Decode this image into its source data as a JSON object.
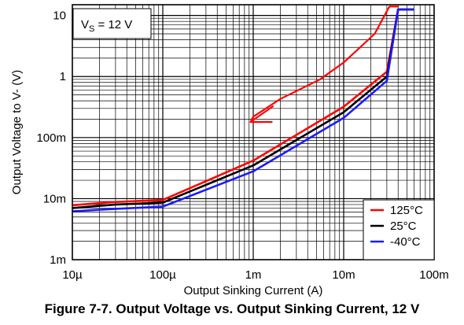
{
  "caption": "Figure 7-7. Output Voltage vs. Output Sinking Current, 12 V",
  "chart_data": {
    "type": "line",
    "xscale": "log",
    "yscale": "log",
    "xlabel": "Output Sinking Current (A)",
    "ylabel": "Output Voltage to V- (V)",
    "xlim": [
      1e-05,
      0.1
    ],
    "ylim": [
      0.001,
      15
    ],
    "x_ticks": [
      {
        "value": 1e-05,
        "label": "10µ"
      },
      {
        "value": 0.0001,
        "label": "100µ"
      },
      {
        "value": 0.001,
        "label": "1m"
      },
      {
        "value": 0.01,
        "label": "10m"
      },
      {
        "value": 0.1,
        "label": "100m"
      }
    ],
    "y_ticks": [
      {
        "value": 0.001,
        "label": "1m"
      },
      {
        "value": 0.01,
        "label": "10m"
      },
      {
        "value": 0.1,
        "label": "100m"
      },
      {
        "value": 1,
        "label": "1"
      },
      {
        "value": 10,
        "label": "10"
      }
    ],
    "grid": true,
    "annotation_box": {
      "text": "V",
      "subscript": "S",
      "suffix": " = 12 V"
    },
    "legend": {
      "position": "bottom-right"
    },
    "series": [
      {
        "name": "125°C",
        "color": "#ff0000",
        "points": [
          [
            1e-05,
            0.0078
          ],
          [
            3e-05,
            0.0088
          ],
          [
            0.0001,
            0.0095
          ],
          [
            0.001,
            0.042
          ],
          [
            0.01,
            0.32
          ],
          [
            0.03,
            1.2
          ],
          [
            0.04,
            12.5
          ],
          [
            0.06,
            12.5
          ]
        ]
      },
      {
        "name": "25°C",
        "color": "#000000",
        "points": [
          [
            1e-05,
            0.007
          ],
          [
            3e-05,
            0.008
          ],
          [
            0.0001,
            0.0086
          ],
          [
            0.001,
            0.035
          ],
          [
            0.01,
            0.26
          ],
          [
            0.03,
            1.0
          ],
          [
            0.04,
            12.5
          ],
          [
            0.06,
            12.5
          ]
        ]
      },
      {
        "name": "-40°C",
        "color": "#1a1aff",
        "points": [
          [
            1e-05,
            0.0062
          ],
          [
            3e-05,
            0.0068
          ],
          [
            0.0001,
            0.0074
          ],
          [
            0.001,
            0.028
          ],
          [
            0.01,
            0.21
          ],
          [
            0.03,
            0.85
          ],
          [
            0.04,
            12.5
          ],
          [
            0.06,
            12.5
          ]
        ]
      }
    ],
    "markup": {
      "color": "#ff0000",
      "description": "hand-drawn red line and arrow",
      "points": [
        [
          0.04,
          14
        ],
        [
          0.032,
          14
        ],
        [
          0.022,
          5
        ],
        [
          0.01,
          1.7
        ],
        [
          0.0055,
          0.9
        ],
        [
          0.002,
          0.43
        ],
        [
          0.001,
          0.22
        ],
        [
          0.00095,
          0.19
        ]
      ],
      "arrowhead": [
        [
          0.00165,
          0.325
        ],
        [
          0.00093,
          0.18
        ],
        [
          0.0016,
          0.18
        ]
      ]
    }
  }
}
